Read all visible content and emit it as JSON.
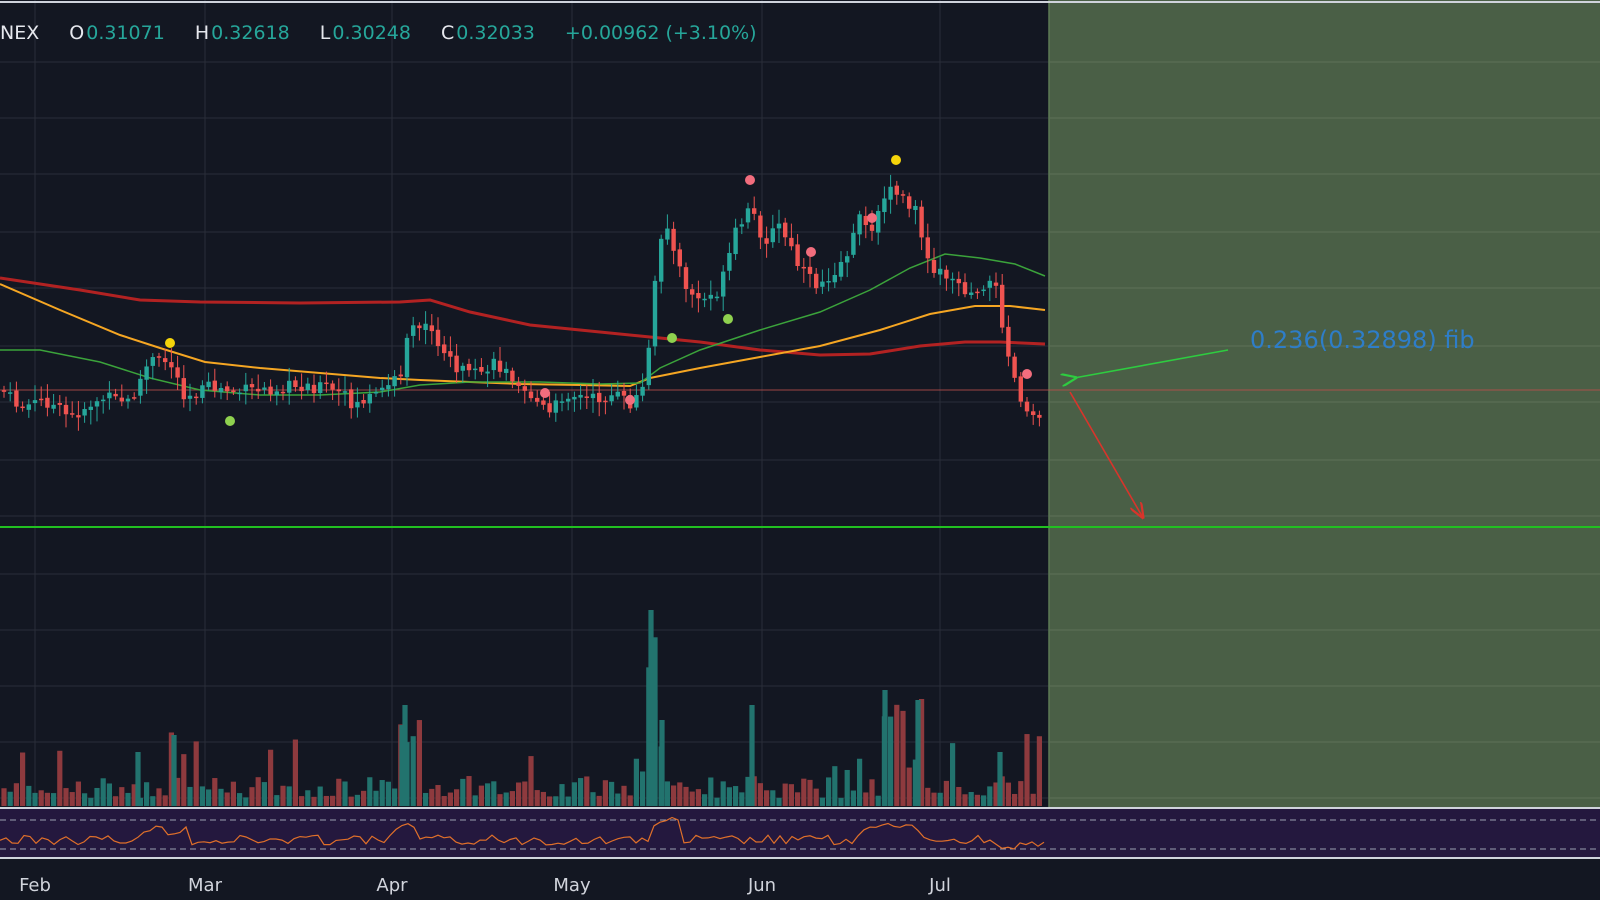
{
  "header": {
    "symbol_fragment": "NEX",
    "ohlc": [
      {
        "label": "O",
        "value": "0.31071"
      },
      {
        "label": "H",
        "value": "0.32618"
      },
      {
        "label": "L",
        "value": "0.30248"
      },
      {
        "label": "C",
        "value": "0.32033"
      }
    ],
    "change": "+0.00962 (+3.10%)"
  },
  "annotation": {
    "fib_label": "0.236(0.32898) fib"
  },
  "colors": {
    "background": "#131722",
    "grid": "#2a2e39",
    "up": "#26a69a",
    "down": "#ef5350",
    "forecast_zone": "#4a5f46",
    "support_line": "#21c021",
    "ma_fast": "#3ba33b",
    "ma_mid": "#f5a623",
    "ma_slow": "#b22222",
    "fib_level": "#c0504d",
    "rsi_panel": "#24183e",
    "rsi_line": "#e0702a",
    "dot_red": "#f26d7d",
    "dot_yellow": "#f5d40a",
    "dot_green": "#8fd14f"
  },
  "chart_data": {
    "type": "candlestick",
    "x_tick_labels": [
      "Feb",
      "Mar",
      "Apr",
      "May",
      "Jun",
      "Jul"
    ],
    "price_estimate_range": [
      0.27,
      0.42
    ],
    "fib_level": {
      "ratio": 0.236,
      "price": 0.32898,
      "label": "0.236(0.32898) fib"
    },
    "last_bar": {
      "open": 0.31071,
      "high": 0.32618,
      "low": 0.30248,
      "close": 0.32033,
      "change": 0.00962,
      "change_pct": 3.1
    },
    "indicators": [
      "moving average (fast)",
      "moving average (mid)",
      "moving average (slow)",
      "volume",
      "RSI"
    ],
    "grid": true
  }
}
